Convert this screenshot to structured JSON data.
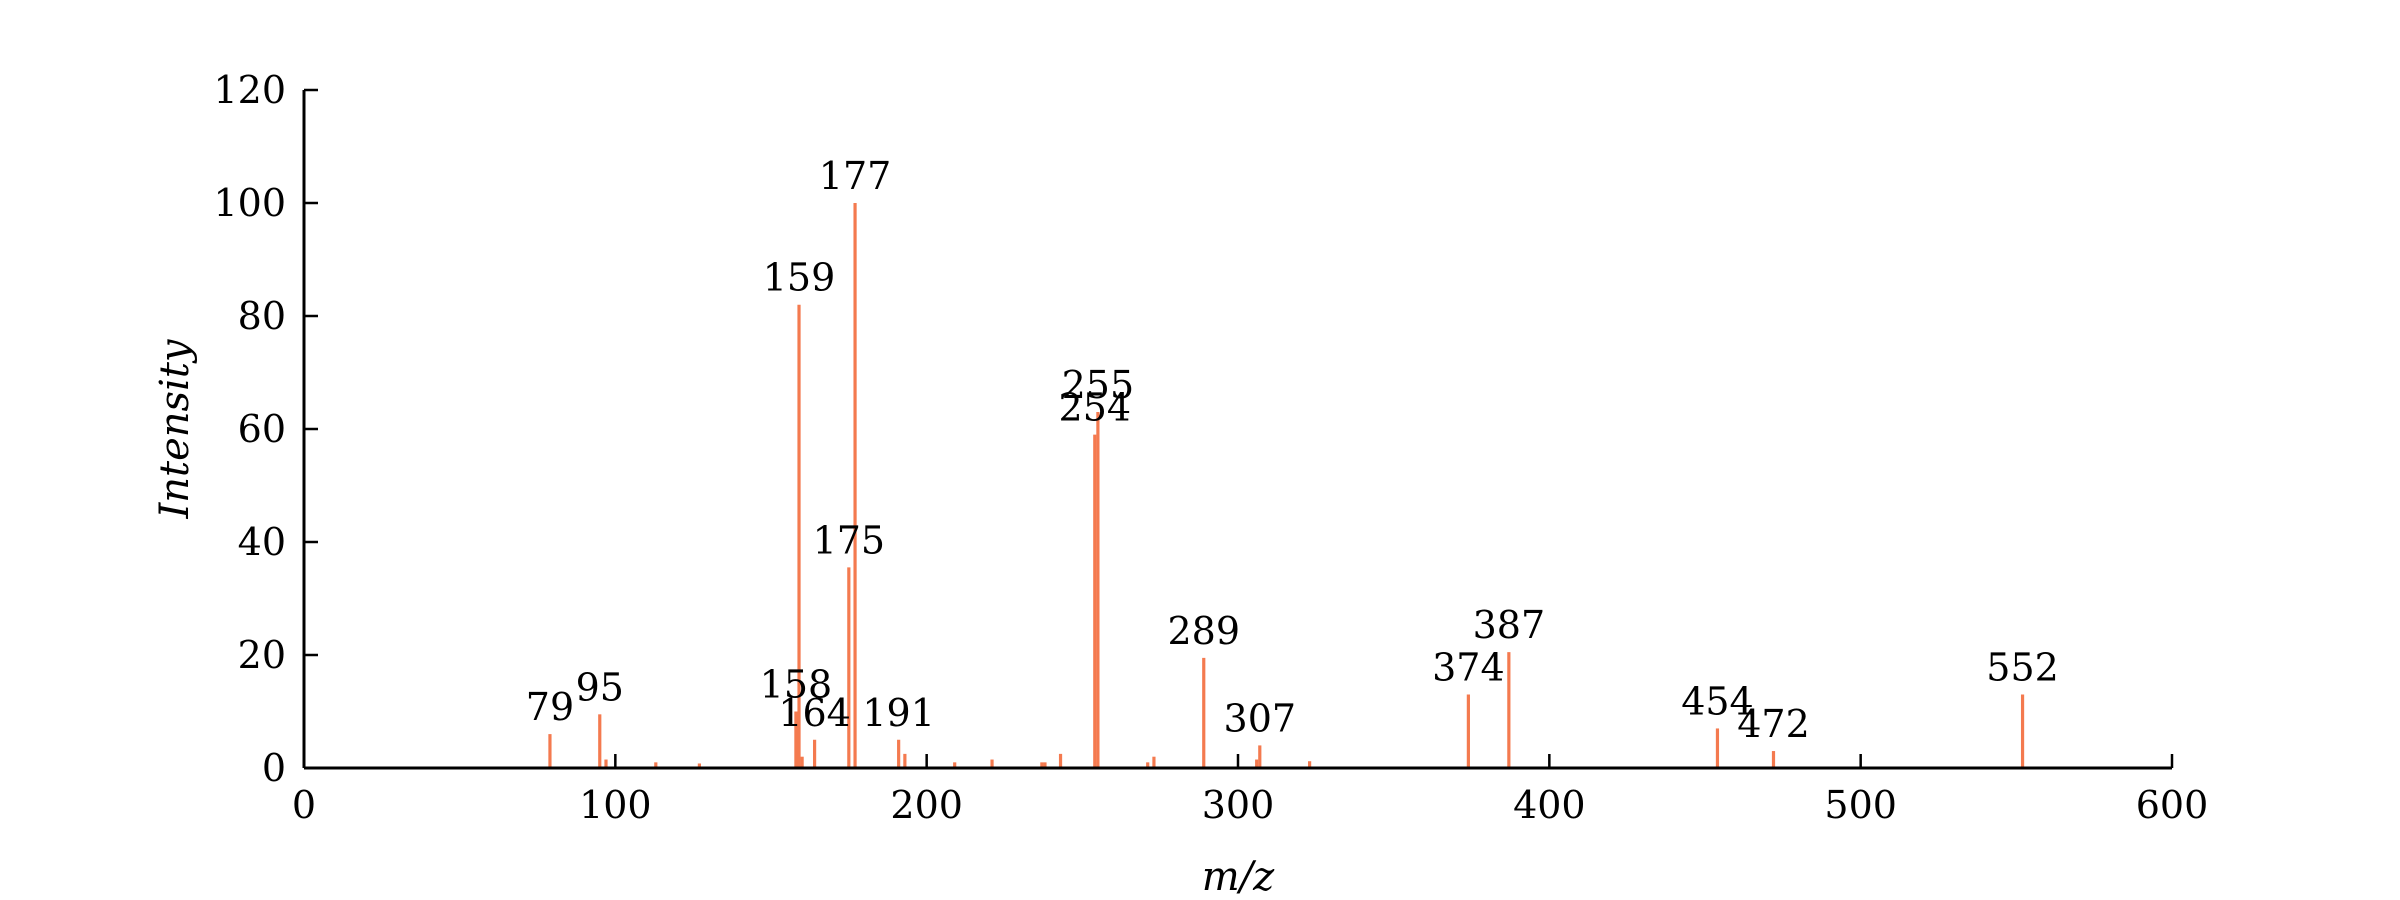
{
  "chart_data": {
    "type": "bar",
    "title": "",
    "xlabel": "m/z",
    "ylabel": "Intensity",
    "xlim": [
      0,
      600
    ],
    "ylim": [
      0,
      120
    ],
    "x_ticks": [
      0,
      100,
      200,
      300,
      400,
      500,
      600
    ],
    "y_ticks": [
      0,
      20,
      40,
      60,
      80,
      100,
      120
    ],
    "grid": false,
    "color": "#f47a4f",
    "peaks": [
      {
        "x": 79,
        "y": 6,
        "label": "79"
      },
      {
        "x": 95,
        "y": 9.5,
        "label": "95"
      },
      {
        "x": 97,
        "y": 1.5
      },
      {
        "x": 113,
        "y": 1
      },
      {
        "x": 127,
        "y": 0.8
      },
      {
        "x": 158,
        "y": 10,
        "label": "158"
      },
      {
        "x": 159,
        "y": 82,
        "label": "159"
      },
      {
        "x": 160,
        "y": 2
      },
      {
        "x": 164,
        "y": 5,
        "label": "164"
      },
      {
        "x": 175,
        "y": 35.5,
        "label": "175"
      },
      {
        "x": 177,
        "y": 100,
        "label": "177"
      },
      {
        "x": 191,
        "y": 5,
        "label": "191"
      },
      {
        "x": 193,
        "y": 2.5
      },
      {
        "x": 209,
        "y": 1
      },
      {
        "x": 221,
        "y": 1.5
      },
      {
        "x": 237,
        "y": 1
      },
      {
        "x": 238,
        "y": 1
      },
      {
        "x": 243,
        "y": 2.5
      },
      {
        "x": 254,
        "y": 59,
        "label": "254"
      },
      {
        "x": 255,
        "y": 63,
        "label": "255"
      },
      {
        "x": 271,
        "y": 1
      },
      {
        "x": 273,
        "y": 2
      },
      {
        "x": 289,
        "y": 19.5,
        "label": "289"
      },
      {
        "x": 306,
        "y": 1.5
      },
      {
        "x": 307,
        "y": 4,
        "label": "307"
      },
      {
        "x": 323,
        "y": 1.2
      },
      {
        "x": 374,
        "y": 13,
        "label": "374"
      },
      {
        "x": 387,
        "y": 20.5,
        "label": "387"
      },
      {
        "x": 454,
        "y": 7,
        "label": "454"
      },
      {
        "x": 472,
        "y": 3,
        "label": "472"
      },
      {
        "x": 552,
        "y": 13,
        "label": "552"
      }
    ]
  }
}
